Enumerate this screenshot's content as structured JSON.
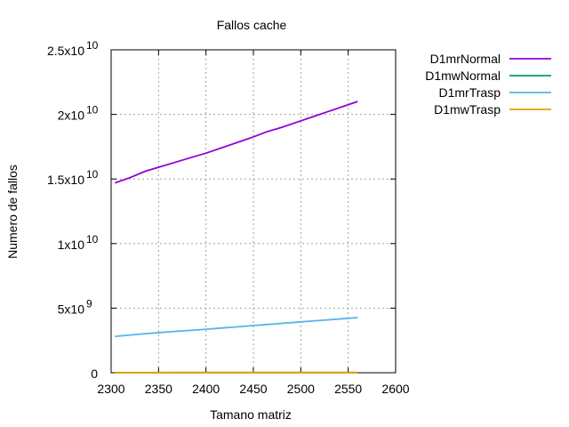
{
  "chart_data": {
    "type": "line",
    "title": "Fallos cache",
    "xlabel": "Tamano matriz",
    "ylabel": "Numero de fallos",
    "xlim": [
      2300,
      2600
    ],
    "ylim": [
      0,
      25000000000
    ],
    "grid": true,
    "legend_position": "outside-top-right",
    "x_ticks": [
      {
        "value": 2300,
        "label": "2300"
      },
      {
        "value": 2350,
        "label": "2350"
      },
      {
        "value": 2400,
        "label": "2400"
      },
      {
        "value": 2450,
        "label": "2450"
      },
      {
        "value": 2500,
        "label": "2500"
      },
      {
        "value": 2550,
        "label": "2550"
      },
      {
        "value": 2600,
        "label": "2600"
      }
    ],
    "y_ticks": [
      {
        "value": 0,
        "mantissa": "0",
        "exponent": ""
      },
      {
        "value": 5000000000,
        "mantissa": "5x10",
        "exponent": "9"
      },
      {
        "value": 10000000000,
        "mantissa": "1x10",
        "exponent": "10"
      },
      {
        "value": 15000000000,
        "mantissa": "1.5x10",
        "exponent": "10"
      },
      {
        "value": 20000000000,
        "mantissa": "2x10",
        "exponent": "10"
      },
      {
        "value": 25000000000,
        "mantissa": "2.5x10",
        "exponent": "10"
      }
    ],
    "x": [
      2304,
      2320,
      2336,
      2352,
      2368,
      2384,
      2400,
      2416,
      2432,
      2448,
      2464,
      2480,
      2496,
      2512,
      2528,
      2544,
      2560
    ],
    "series": [
      {
        "name": "D1mrNormal",
        "color": "#9400d3",
        "values": [
          14700000000,
          15100000000,
          15600000000,
          15950000000,
          16300000000,
          16650000000,
          17000000000,
          17400000000,
          17800000000,
          18200000000,
          18650000000,
          19000000000,
          19400000000,
          19800000000,
          20200000000,
          20600000000,
          21000000000
        ]
      },
      {
        "name": "D1mwNormal",
        "color": "#009e73",
        "values": [
          10000000,
          10100000,
          10200000,
          10300000,
          10400000,
          10500000,
          10600000,
          10700000,
          10800000,
          10900000,
          11000000,
          11100000,
          11200000,
          11300000,
          11400000,
          11500000,
          11600000
        ]
      },
      {
        "name": "D1mrTrasp",
        "color": "#56b4e9",
        "values": [
          2820000000,
          2920000000,
          3020000000,
          3110000000,
          3200000000,
          3280000000,
          3370000000,
          3460000000,
          3550000000,
          3640000000,
          3730000000,
          3820000000,
          3910000000,
          4000000000,
          4090000000,
          4180000000,
          4270000000
        ]
      },
      {
        "name": "D1mwTrasp",
        "color": "#e69f00",
        "values": [
          12000000,
          12100000,
          12200000,
          12300000,
          12400000,
          12500000,
          12600000,
          12700000,
          12800000,
          12900000,
          13000000,
          13100000,
          13200000,
          13300000,
          13400000,
          13500000,
          13600000
        ]
      }
    ]
  }
}
